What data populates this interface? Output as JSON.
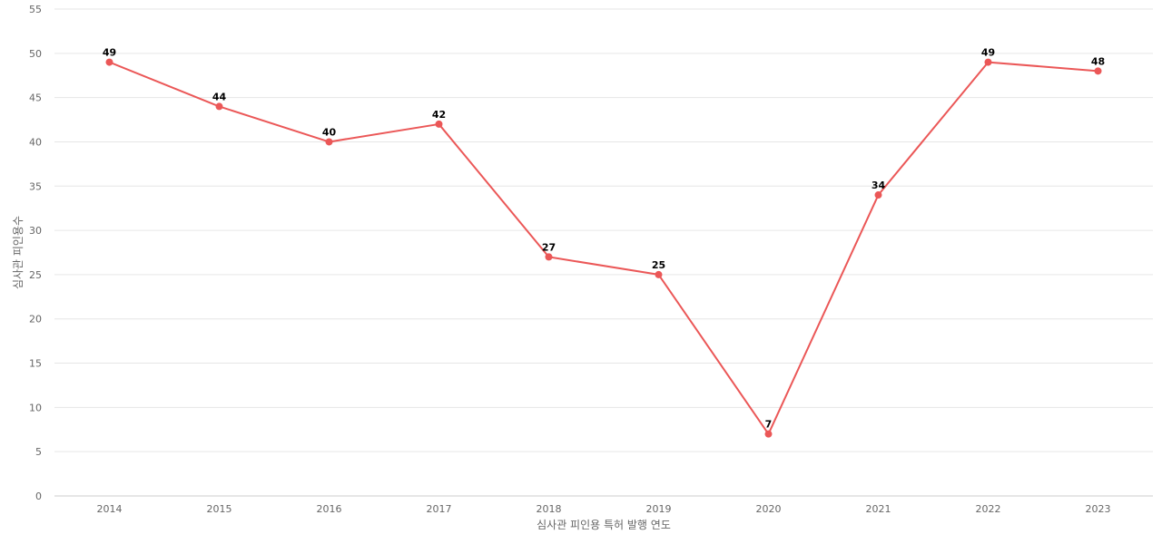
{
  "chart_data": {
    "type": "line",
    "title": "",
    "xlabel": "심사관 피인용 특허 발행 연도",
    "ylabel": "심사관 피인용수",
    "categories": [
      "2014",
      "2015",
      "2016",
      "2017",
      "2018",
      "2019",
      "2020",
      "2021",
      "2022",
      "2023"
    ],
    "series": [
      {
        "values": [
          49,
          44,
          40,
          42,
          27,
          25,
          7,
          34,
          49,
          48
        ],
        "color": "#eb5757"
      }
    ],
    "ylim": [
      0,
      55
    ],
    "yticks": [
      0,
      5,
      10,
      15,
      20,
      25,
      30,
      35,
      40,
      45,
      50,
      55
    ],
    "grid": true,
    "legend": "none",
    "data_labels": true
  }
}
